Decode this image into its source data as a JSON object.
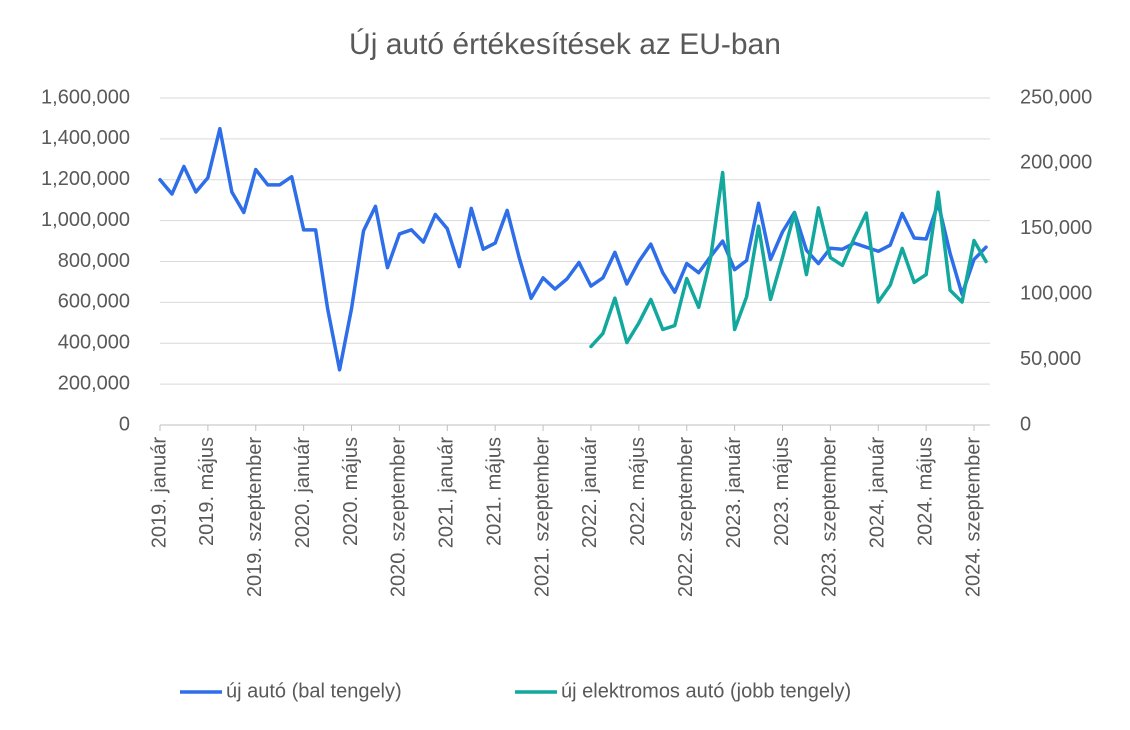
{
  "chart_data": {
    "type": "line",
    "title": "Új autó értékesítések az EU-ban",
    "categories": [
      "2019. január",
      null,
      null,
      null,
      "2019. május",
      null,
      null,
      null,
      "2019. szeptember",
      null,
      null,
      null,
      "2020. január",
      null,
      null,
      null,
      "2020. május",
      null,
      null,
      null,
      "2020. szeptember",
      null,
      null,
      null,
      "2021. január",
      null,
      null,
      null,
      "2021. május",
      null,
      null,
      null,
      "2021. szeptember",
      null,
      null,
      null,
      "2022. január",
      null,
      null,
      null,
      "2022. május",
      null,
      null,
      null,
      "2022. szeptember",
      null,
      null,
      null,
      "2023. január",
      null,
      null,
      null,
      "2023. május",
      null,
      null,
      null,
      "2023. szeptember",
      null,
      null,
      null,
      "2024. január",
      null,
      null,
      null,
      "2024. május",
      null,
      null,
      null,
      "2024. szeptember",
      null
    ],
    "series": [
      {
        "name": "új autó (bal tengely)",
        "color": "#2e6ee8",
        "values": [
          1200000,
          1130000,
          1265000,
          1140000,
          1210000,
          1450000,
          1140000,
          1040000,
          1250000,
          1175000,
          1175000,
          1215000,
          955000,
          955000,
          570000,
          270000,
          570000,
          950000,
          1070000,
          770000,
          935000,
          955000,
          895000,
          1030000,
          960000,
          775000,
          1060000,
          860000,
          890000,
          1050000,
          820000,
          620000,
          720000,
          665000,
          715000,
          795000,
          680000,
          720000,
          845000,
          690000,
          800000,
          885000,
          745000,
          650000,
          790000,
          745000,
          825000,
          900000,
          760000,
          805000,
          1085000,
          810000,
          945000,
          1040000,
          855000,
          790000,
          865000,
          860000,
          890000,
          870000,
          850000,
          880000,
          1035000,
          915000,
          910000,
          1085000,
          840000,
          640000,
          810000,
          870000
        ]
      },
      {
        "name": "új elektromos autó (jobb tengely)",
        "color": "#12a89d",
        "axis": "y2",
        "values": [
          null,
          null,
          null,
          null,
          null,
          null,
          null,
          null,
          null,
          null,
          null,
          null,
          null,
          null,
          null,
          null,
          null,
          null,
          null,
          null,
          null,
          null,
          null,
          null,
          null,
          null,
          null,
          null,
          null,
          null,
          null,
          null,
          null,
          null,
          null,
          null,
          60000,
          70000,
          97000,
          63000,
          78000,
          96000,
          73000,
          76000,
          112000,
          90000,
          128000,
          193000,
          73000,
          98000,
          152000,
          96000,
          128000,
          162000,
          115000,
          166000,
          128000,
          122000,
          143000,
          162000,
          94000,
          107000,
          135000,
          109000,
          115000,
          178000,
          103000,
          94000,
          141000,
          125000
        ]
      }
    ],
    "ylim": [
      0,
      1600000
    ],
    "yticks": [
      0,
      {
        "value": 200000,
        "label": "200,000"
      },
      {
        "value": 400000,
        "label": "400,000"
      },
      {
        "value": 600000,
        "label": "600,000"
      },
      {
        "value": 800000,
        "label": "800,000"
      },
      {
        "value": 1000000,
        "label": "1,000,000"
      },
      {
        "value": 1200000,
        "label": "1,200,000"
      },
      {
        "value": 1400000,
        "label": "1,400,000"
      },
      {
        "value": 1600000,
        "label": "1,600,000"
      }
    ],
    "y2lim": [
      0,
      250000
    ],
    "y2ticks": [
      0,
      {
        "value": 50000,
        "label": "50,000"
      },
      {
        "value": 100000,
        "label": "100,000"
      },
      {
        "value": 150000,
        "label": "150,000"
      },
      {
        "value": 200000,
        "label": "200,000"
      },
      {
        "value": 250000,
        "label": "250,000"
      }
    ],
    "grid": true,
    "legend": "bottom"
  }
}
